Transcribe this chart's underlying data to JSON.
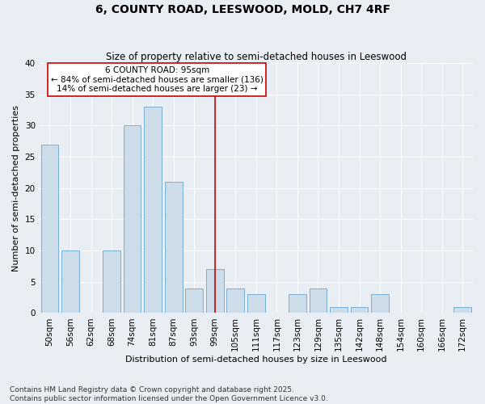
{
  "title": "6, COUNTY ROAD, LEESWOOD, MOLD, CH7 4RF",
  "subtitle": "Size of property relative to semi-detached houses in Leeswood",
  "xlabel": "Distribution of semi-detached houses by size in Leeswood",
  "ylabel": "Number of semi-detached properties",
  "categories": [
    "50sqm",
    "56sqm",
    "62sqm",
    "68sqm",
    "74sqm",
    "81sqm",
    "87sqm",
    "93sqm",
    "99sqm",
    "105sqm",
    "111sqm",
    "117sqm",
    "123sqm",
    "129sqm",
    "135sqm",
    "142sqm",
    "148sqm",
    "154sqm",
    "160sqm",
    "166sqm",
    "172sqm"
  ],
  "values": [
    27,
    10,
    0,
    10,
    30,
    33,
    21,
    4,
    7,
    4,
    3,
    0,
    3,
    4,
    1,
    1,
    3,
    0,
    0,
    0,
    1
  ],
  "bar_color": "#ccdce8",
  "bar_edge_color": "#7bafd4",
  "highlight_index": 8,
  "vline_color": "#cc0000",
  "annotation_title": "6 COUNTY ROAD: 95sqm",
  "annotation_line1": "← 84% of semi-detached houses are smaller (136)",
  "annotation_line2": "14% of semi-detached houses are larger (23) →",
  "annotation_box_edge_color": "#cc0000",
  "ylim": [
    0,
    40
  ],
  "yticks": [
    0,
    5,
    10,
    15,
    20,
    25,
    30,
    35,
    40
  ],
  "footer1": "Contains HM Land Registry data © Crown copyright and database right 2025.",
  "footer2": "Contains public sector information licensed under the Open Government Licence v3.0.",
  "bg_color": "#e8eef4",
  "plot_bg_color": "#e8eef4",
  "title_fontsize": 10,
  "subtitle_fontsize": 8.5,
  "axis_label_fontsize": 8,
  "tick_fontsize": 7.5,
  "annotation_fontsize": 7.5,
  "footer_fontsize": 6.5
}
